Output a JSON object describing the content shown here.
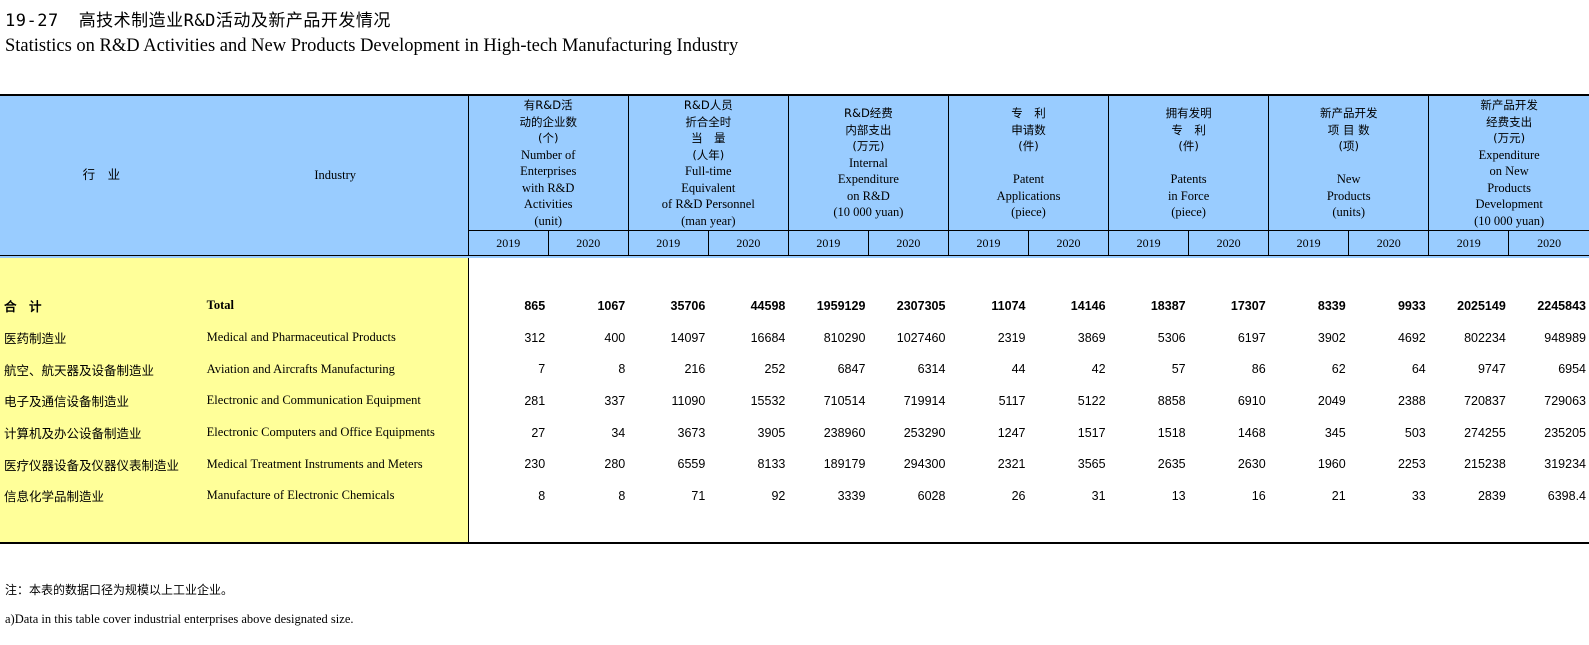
{
  "title": {
    "number": "19-27",
    "cn": "高技术制造业R&D活动及新产品开发情况",
    "en": "Statistics on R&D Activities and New Products Development in High-tech Manufacturing Industry"
  },
  "header": {
    "industry_cn": "行　业",
    "industry_en": "Industry",
    "columns": [
      {
        "cn": [
          "有R&D活",
          "动的企业数",
          "(个)"
        ],
        "en": [
          "Number of",
          "Enterprises",
          "with R&D",
          "Activities",
          "(unit)"
        ]
      },
      {
        "cn": [
          "R&D人员",
          "折合全时",
          "当　量",
          "(人年)"
        ],
        "en": [
          "Full-time",
          "Equivalent",
          "of R&D Personnel",
          "(man year)"
        ]
      },
      {
        "cn": [
          "R&D经费",
          "内部支出",
          "(万元)"
        ],
        "en": [
          "Internal",
          "Expenditure",
          "on R&D",
          "(10 000 yuan)"
        ]
      },
      {
        "cn": [
          "专　利",
          "申请数",
          "(件)"
        ],
        "en": [
          "",
          "Patent",
          "Applications",
          "(piece)"
        ]
      },
      {
        "cn": [
          "拥有发明",
          "专　利",
          "(件)"
        ],
        "en": [
          "",
          "Patents",
          "in Force",
          "(piece)"
        ]
      },
      {
        "cn": [
          "新产品开发",
          "项 目 数",
          "(项)"
        ],
        "en": [
          "",
          "New",
          "Products",
          "(units)"
        ]
      },
      {
        "cn": [
          "新产品开发",
          "经费支出",
          "(万元)"
        ],
        "en": [
          "Expenditure",
          "on New",
          "Products",
          "Development",
          "(10 000 yuan)"
        ]
      }
    ],
    "years": [
      "2019",
      "2020"
    ]
  },
  "rows": [
    {
      "cn": "合　计",
      "en": "Total",
      "values": [
        "865",
        "1067",
        "35706",
        "44598",
        "1959129",
        "2307305",
        "11074",
        "14146",
        "18387",
        "17307",
        "8339",
        "9933",
        "2025149",
        "2245843"
      ]
    },
    {
      "cn": "医药制造业",
      "en": "Medical and Pharmaceutical Products",
      "values": [
        "312",
        "400",
        "14097",
        "16684",
        "810290",
        "1027460",
        "2319",
        "3869",
        "5306",
        "6197",
        "3902",
        "4692",
        "802234",
        "948989"
      ]
    },
    {
      "cn": "航空、航天器及设备制造业",
      "en": "Aviation and Aircrafts Manufacturing",
      "values": [
        "7",
        "8",
        "216",
        "252",
        "6847",
        "6314",
        "44",
        "42",
        "57",
        "86",
        "62",
        "64",
        "9747",
        "6954"
      ]
    },
    {
      "cn": "电子及通信设备制造业",
      "en": "Electronic and Communication Equipment",
      "values": [
        "281",
        "337",
        "11090",
        "15532",
        "710514",
        "719914",
        "5117",
        "5122",
        "8858",
        "6910",
        "2049",
        "2388",
        "720837",
        "729063"
      ]
    },
    {
      "cn": "计算机及办公设备制造业",
      "en": "Electronic Computers and Office Equipments",
      "values": [
        "27",
        "34",
        "3673",
        "3905",
        "238960",
        "253290",
        "1247",
        "1517",
        "1518",
        "1468",
        "345",
        "503",
        "274255",
        "235205"
      ]
    },
    {
      "cn": "医疗仪器设备及仪器仪表制造业",
      "en": "Medical Treatment Instruments and Meters",
      "values": [
        "230",
        "280",
        "6559",
        "8133",
        "189179",
        "294300",
        "2321",
        "3565",
        "2635",
        "2630",
        "1960",
        "2253",
        "215238",
        "319234"
      ]
    },
    {
      "cn": "信息化学品制造业",
      "en": "Manufacture of Electronic Chemicals",
      "values": [
        "8",
        "8",
        "71",
        "92",
        "3339",
        "6028",
        "26",
        "31",
        "13",
        "16",
        "21",
        "33",
        "2839",
        "6398.4"
      ]
    }
  ],
  "notes": {
    "cn": "注：本表的数据口径为规模以上工业企业。",
    "en": "a)Data in this table cover industrial enterprises above designated size."
  },
  "colors": {
    "header_bg": "#99ccff",
    "label_bg": "#ffff99"
  }
}
